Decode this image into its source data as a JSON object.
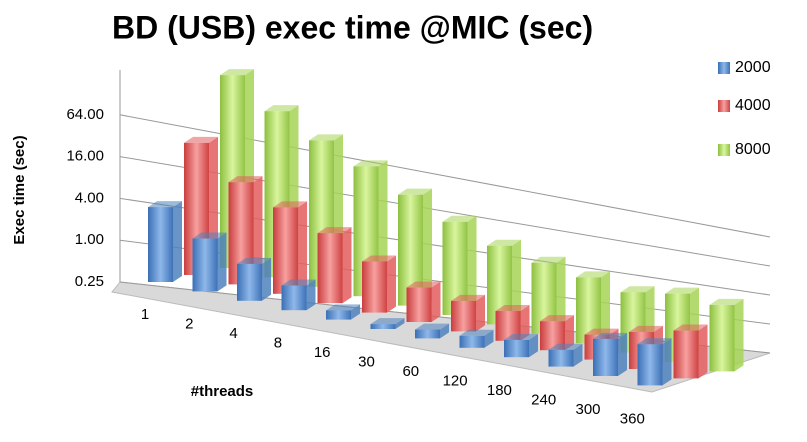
{
  "chart_data": {
    "type": "bar3d",
    "title": "BD  (USB) exec time @MIC (sec)",
    "y_label": "Exec time (sec)",
    "x_label": "#threads",
    "log_scale": true,
    "log_base": 2,
    "categories": [
      "1",
      "2",
      "4",
      "8",
      "16",
      "30",
      "60",
      "120",
      "180",
      "240",
      "300",
      "360"
    ],
    "series": [
      {
        "name": "2000",
        "color": "#4f81bd",
        "values": [
          3,
          1.5,
          0.9,
          0.6,
          0.35,
          0.3,
          0.35,
          0.4,
          0.5,
          0.5,
          1.2,
          1.5
        ]
      },
      {
        "name": "4000",
        "color": "#e35d5d",
        "values": [
          20,
          8,
          5,
          3,
          1.6,
          0.9,
          0.8,
          0.8,
          0.8,
          0.7,
          1.2,
          2
        ]
      },
      {
        "name": "8000",
        "color": "#a6d456",
        "values": [
          150,
          70,
          40,
          25,
          14,
          8,
          5,
          4,
          3.5,
          3,
          4.5,
          4.5
        ]
      }
    ],
    "ylim": [
      0.25,
      256
    ],
    "yticks": [
      {
        "value": 0.25,
        "label": "0.25"
      },
      {
        "value": 1,
        "label": "1.00"
      },
      {
        "value": 4,
        "label": "4.00"
      },
      {
        "value": 16,
        "label": "16.00"
      },
      {
        "value": 64,
        "label": "64.00"
      }
    ],
    "grid": true
  }
}
